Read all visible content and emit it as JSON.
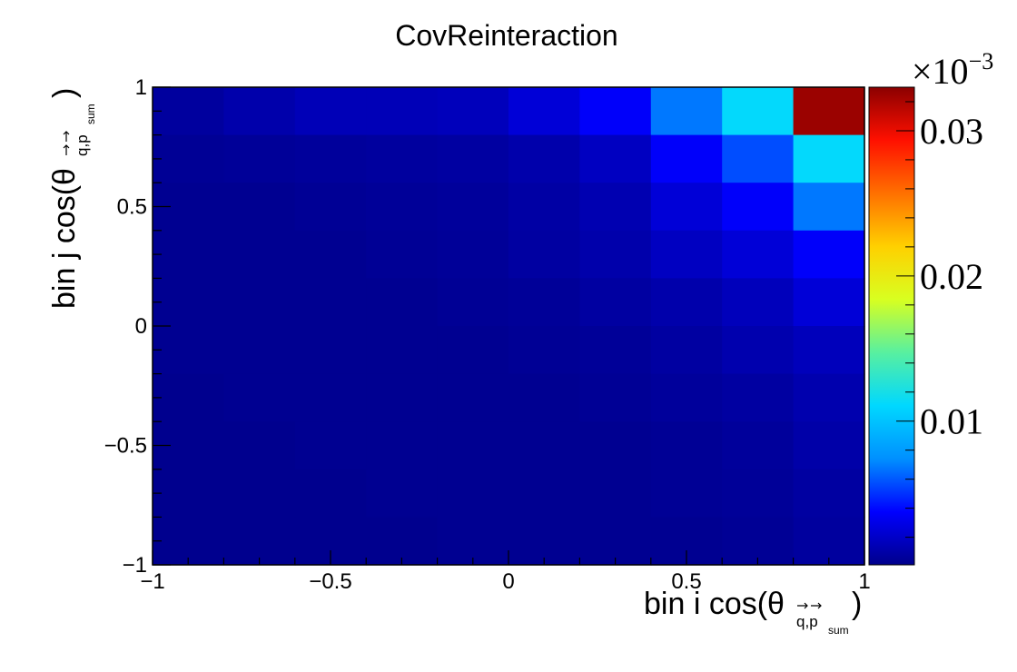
{
  "chart_data": {
    "type": "heatmap",
    "title": "CovReinteraction",
    "xlabel": {
      "prefix": "bin i cos(θ",
      "sub_q": "q",
      "sub_sep": ",",
      "sub_p": "p",
      "sub_sum": "sum",
      "suffix": ")"
    },
    "ylabel": {
      "prefix": "bin j cos(θ",
      "sub_q": "q",
      "sub_sep": ",",
      "sub_p": "p",
      "sub_sum": "sum",
      "suffix": ")"
    },
    "xlim": [
      -1,
      1
    ],
    "ylim": [
      -1,
      1
    ],
    "x_ticks": [
      {
        "value": -1,
        "label": "−1"
      },
      {
        "value": -0.5,
        "label": "−0.5"
      },
      {
        "value": 0,
        "label": "0"
      },
      {
        "value": 0.5,
        "label": "0.5"
      },
      {
        "value": 1,
        "label": "1"
      }
    ],
    "y_ticks": [
      {
        "value": -1,
        "label": "−1"
      },
      {
        "value": -0.5,
        "label": "−0.5"
      },
      {
        "value": 0,
        "label": "0"
      },
      {
        "value": 0.5,
        "label": "0.5"
      },
      {
        "value": 1,
        "label": "1"
      }
    ],
    "x_bin_edges": [
      -1,
      -0.8,
      -0.6,
      -0.4,
      -0.2,
      0,
      0.2,
      0.4,
      0.6,
      0.8,
      1
    ],
    "y_bin_edges": [
      -1,
      -0.8,
      -0.6,
      -0.4,
      -0.2,
      0,
      0.2,
      0.4,
      0.6,
      0.8,
      1
    ],
    "values_rows_top_to_bottom": [
      [
        0.0007,
        0.0011,
        0.0015,
        0.0015,
        0.0016,
        0.0025,
        0.0036,
        0.0068,
        0.0112,
        0.0325
      ],
      [
        0.0004,
        0.0005,
        0.0006,
        0.0007,
        0.0008,
        0.0011,
        0.0018,
        0.0036,
        0.0057,
        0.0112
      ],
      [
        0.0003,
        0.0003,
        0.0004,
        0.0005,
        0.0006,
        0.0009,
        0.0013,
        0.0025,
        0.0036,
        0.0068
      ],
      [
        0.0003,
        0.0003,
        0.0003,
        0.0004,
        0.0005,
        0.0008,
        0.0011,
        0.0018,
        0.0025,
        0.0036
      ],
      [
        0.0003,
        0.0003,
        0.0003,
        0.0003,
        0.0004,
        0.0005,
        0.0008,
        0.0011,
        0.0016,
        0.0025
      ],
      [
        0.0003,
        0.0003,
        0.0003,
        0.0003,
        0.0003,
        0.0004,
        0.0005,
        0.0008,
        0.0012,
        0.0016
      ],
      [
        0.0002,
        0.0003,
        0.0003,
        0.0003,
        0.0003,
        0.0003,
        0.0004,
        0.0006,
        0.0008,
        0.0012
      ],
      [
        0.0002,
        0.0002,
        0.0003,
        0.0003,
        0.0003,
        0.0003,
        0.0003,
        0.0004,
        0.0006,
        0.001
      ],
      [
        0.0002,
        0.0002,
        0.0002,
        0.0003,
        0.0003,
        0.0003,
        0.0003,
        0.0004,
        0.0005,
        0.0008
      ],
      [
        0.0002,
        0.0002,
        0.0002,
        0.0002,
        0.0003,
        0.0003,
        0.0003,
        0.0003,
        0.0004,
        0.0007
      ]
    ],
    "colorbar": {
      "range": [
        0.0001,
        0.033
      ],
      "ticks": [
        {
          "value": 0.01,
          "label": "0.01"
        },
        {
          "value": 0.02,
          "label": "0.02"
        },
        {
          "value": 0.03,
          "label": "0.03"
        }
      ],
      "exponent_base": "×10",
      "exponent_power": "−3",
      "colors": [
        "#00008b",
        "#0000ff",
        "#0090ff",
        "#00d8ff",
        "#58f0a0",
        "#d8ff20",
        "#ffd000",
        "#ff7000",
        "#ff1000",
        "#8b0000"
      ]
    },
    "grid": false
  }
}
